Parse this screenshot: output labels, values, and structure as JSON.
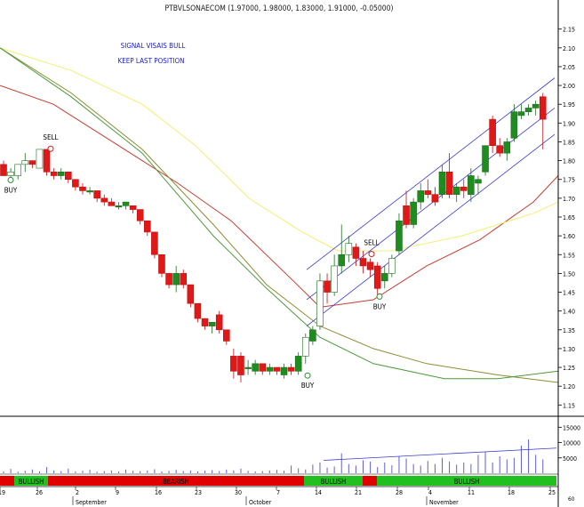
{
  "chart_data": {
    "type": "candlestick",
    "title": "PTBVLSONAECOM (1.97000, 1.98000, 1.83000, 1.91000, -0.05000)",
    "annotations": [
      "SIGNAL VISAIS BULL",
      "KEEP LAST POSITION"
    ],
    "ylim": [
      1.12,
      2.18
    ],
    "y_ticks": [
      "2.15",
      "2.10",
      "2.05",
      "2.00",
      "1.95",
      "1.90",
      "1.85",
      "1.80",
      "1.75",
      "1.70",
      "1.65",
      "1.60",
      "1.55",
      "1.50",
      "1.45",
      "1.40",
      "1.35",
      "1.30",
      "1.25",
      "1.20",
      "1.15"
    ],
    "x_day_labels": [
      "19",
      "26",
      "2",
      "9",
      "16",
      "23",
      "30",
      "7",
      "14",
      "21",
      "28",
      "4",
      "11",
      "18",
      "25"
    ],
    "x_month_labels": [
      "September",
      "October",
      "November"
    ],
    "candles": [
      {
        "o": 1.79,
        "h": 1.8,
        "l": 1.76,
        "c": 1.76
      },
      {
        "o": 1.76,
        "h": 1.78,
        "l": 1.75,
        "c": 1.77
      },
      {
        "o": 1.76,
        "h": 1.79,
        "l": 1.75,
        "c": 1.79
      },
      {
        "o": 1.79,
        "h": 1.82,
        "l": 1.77,
        "c": 1.8
      },
      {
        "o": 1.8,
        "h": 1.8,
        "l": 1.78,
        "c": 1.79
      },
      {
        "o": 1.78,
        "h": 1.83,
        "l": 1.78,
        "c": 1.83
      },
      {
        "o": 1.83,
        "h": 1.83,
        "l": 1.76,
        "c": 1.77
      },
      {
        "o": 1.77,
        "h": 1.78,
        "l": 1.75,
        "c": 1.76
      },
      {
        "o": 1.76,
        "h": 1.78,
        "l": 1.75,
        "c": 1.77
      },
      {
        "o": 1.77,
        "h": 1.77,
        "l": 1.74,
        "c": 1.75
      },
      {
        "o": 1.75,
        "h": 1.75,
        "l": 1.72,
        "c": 1.73
      },
      {
        "o": 1.73,
        "h": 1.74,
        "l": 1.71,
        "c": 1.72
      },
      {
        "o": 1.72,
        "h": 1.73,
        "l": 1.71,
        "c": 1.72
      },
      {
        "o": 1.72,
        "h": 1.72,
        "l": 1.69,
        "c": 1.7
      },
      {
        "o": 1.7,
        "h": 1.71,
        "l": 1.68,
        "c": 1.69
      },
      {
        "o": 1.69,
        "h": 1.7,
        "l": 1.68,
        "c": 1.68
      },
      {
        "o": 1.68,
        "h": 1.69,
        "l": 1.67,
        "c": 1.68
      },
      {
        "o": 1.68,
        "h": 1.69,
        "l": 1.67,
        "c": 1.69
      },
      {
        "o": 1.68,
        "h": 1.68,
        "l": 1.66,
        "c": 1.67
      },
      {
        "o": 1.67,
        "h": 1.67,
        "l": 1.63,
        "c": 1.64
      },
      {
        "o": 1.64,
        "h": 1.64,
        "l": 1.6,
        "c": 1.61
      },
      {
        "o": 1.61,
        "h": 1.61,
        "l": 1.54,
        "c": 1.55
      },
      {
        "o": 1.55,
        "h": 1.55,
        "l": 1.49,
        "c": 1.5
      },
      {
        "o": 1.5,
        "h": 1.5,
        "l": 1.46,
        "c": 1.47
      },
      {
        "o": 1.47,
        "h": 1.52,
        "l": 1.45,
        "c": 1.5
      },
      {
        "o": 1.5,
        "h": 1.51,
        "l": 1.46,
        "c": 1.47
      },
      {
        "o": 1.47,
        "h": 1.47,
        "l": 1.41,
        "c": 1.42
      },
      {
        "o": 1.42,
        "h": 1.42,
        "l": 1.37,
        "c": 1.38
      },
      {
        "o": 1.38,
        "h": 1.38,
        "l": 1.35,
        "c": 1.36
      },
      {
        "o": 1.36,
        "h": 1.37,
        "l": 1.34,
        "c": 1.37
      },
      {
        "o": 1.39,
        "h": 1.4,
        "l": 1.34,
        "c": 1.35
      },
      {
        "o": 1.35,
        "h": 1.35,
        "l": 1.31,
        "c": 1.32
      },
      {
        "o": 1.28,
        "h": 1.3,
        "l": 1.22,
        "c": 1.24
      },
      {
        "o": 1.28,
        "h": 1.29,
        "l": 1.21,
        "c": 1.23
      },
      {
        "o": 1.25,
        "h": 1.27,
        "l": 1.23,
        "c": 1.25
      },
      {
        "o": 1.24,
        "h": 1.27,
        "l": 1.23,
        "c": 1.26
      },
      {
        "o": 1.26,
        "h": 1.26,
        "l": 1.23,
        "c": 1.24
      },
      {
        "o": 1.24,
        "h": 1.26,
        "l": 1.23,
        "c": 1.25
      },
      {
        "o": 1.25,
        "h": 1.25,
        "l": 1.23,
        "c": 1.24
      },
      {
        "o": 1.23,
        "h": 1.26,
        "l": 1.22,
        "c": 1.25
      },
      {
        "o": 1.25,
        "h": 1.26,
        "l": 1.23,
        "c": 1.24
      },
      {
        "o": 1.24,
        "h": 1.29,
        "l": 1.23,
        "c": 1.28
      },
      {
        "o": 1.28,
        "h": 1.34,
        "l": 1.26,
        "c": 1.33
      },
      {
        "o": 1.32,
        "h": 1.36,
        "l": 1.31,
        "c": 1.35
      },
      {
        "o": 1.36,
        "h": 1.5,
        "l": 1.35,
        "c": 1.48
      },
      {
        "o": 1.48,
        "h": 1.5,
        "l": 1.42,
        "c": 1.45
      },
      {
        "o": 1.45,
        "h": 1.55,
        "l": 1.44,
        "c": 1.52
      },
      {
        "o": 1.52,
        "h": 1.63,
        "l": 1.5,
        "c": 1.55
      },
      {
        "o": 1.55,
        "h": 1.6,
        "l": 1.53,
        "c": 1.58
      },
      {
        "o": 1.57,
        "h": 1.58,
        "l": 1.52,
        "c": 1.54
      },
      {
        "o": 1.54,
        "h": 1.56,
        "l": 1.5,
        "c": 1.52
      },
      {
        "o": 1.53,
        "h": 1.54,
        "l": 1.49,
        "c": 1.51
      },
      {
        "o": 1.52,
        "h": 1.53,
        "l": 1.44,
        "c": 1.46
      },
      {
        "o": 1.48,
        "h": 1.52,
        "l": 1.46,
        "c": 1.5
      },
      {
        "o": 1.5,
        "h": 1.55,
        "l": 1.49,
        "c": 1.54
      },
      {
        "o": 1.56,
        "h": 1.66,
        "l": 1.55,
        "c": 1.64
      },
      {
        "o": 1.68,
        "h": 1.72,
        "l": 1.62,
        "c": 1.63
      },
      {
        "o": 1.63,
        "h": 1.7,
        "l": 1.62,
        "c": 1.69
      },
      {
        "o": 1.69,
        "h": 1.74,
        "l": 1.67,
        "c": 1.72
      },
      {
        "o": 1.72,
        "h": 1.75,
        "l": 1.7,
        "c": 1.71
      },
      {
        "o": 1.71,
        "h": 1.73,
        "l": 1.68,
        "c": 1.69
      },
      {
        "o": 1.71,
        "h": 1.79,
        "l": 1.7,
        "c": 1.77
      },
      {
        "o": 1.77,
        "h": 1.82,
        "l": 1.7,
        "c": 1.71
      },
      {
        "o": 1.71,
        "h": 1.74,
        "l": 1.69,
        "c": 1.73
      },
      {
        "o": 1.73,
        "h": 1.75,
        "l": 1.7,
        "c": 1.72
      },
      {
        "o": 1.71,
        "h": 1.78,
        "l": 1.69,
        "c": 1.76
      },
      {
        "o": 1.74,
        "h": 1.76,
        "l": 1.71,
        "c": 1.75
      },
      {
        "o": 1.77,
        "h": 1.84,
        "l": 1.76,
        "c": 1.84
      },
      {
        "o": 1.91,
        "h": 1.92,
        "l": 1.82,
        "c": 1.84
      },
      {
        "o": 1.84,
        "h": 1.86,
        "l": 1.81,
        "c": 1.82
      },
      {
        "o": 1.82,
        "h": 1.86,
        "l": 1.8,
        "c": 1.85
      },
      {
        "o": 1.86,
        "h": 1.95,
        "l": 1.85,
        "c": 1.93
      },
      {
        "o": 1.92,
        "h": 1.95,
        "l": 1.91,
        "c": 1.93
      },
      {
        "o": 1.93,
        "h": 1.95,
        "l": 1.92,
        "c": 1.94
      },
      {
        "o": 1.94,
        "h": 1.96,
        "l": 1.92,
        "c": 1.95
      },
      {
        "o": 1.97,
        "h": 1.98,
        "l": 1.83,
        "c": 1.91
      }
    ],
    "overlay_lines": [
      {
        "color": "#f0f070",
        "y_start": 2.1,
        "y_end": 1.69
      },
      {
        "color": "#c83c32",
        "y_start": 2.0,
        "y_end": 1.76
      },
      {
        "color": "#8c8c32",
        "y_start": 2.1,
        "y_end": 1.21
      },
      {
        "color": "#4a9a3a",
        "y_start": 2.1,
        "y_end": 1.24
      }
    ],
    "channel": {
      "color": "#3a3ad0",
      "y_start_upper": 1.51,
      "y_start_mid": 1.43,
      "y_start_lower": 1.36,
      "y_end_upper": 2.02,
      "y_end_mid": 1.94,
      "y_end_lower": 1.87
    },
    "signals": [
      {
        "label": "BUY",
        "type": "buy"
      },
      {
        "label": "SELL",
        "type": "sell"
      },
      {
        "label": "BUY",
        "type": "buy"
      },
      {
        "label": "SELL",
        "type": "sell"
      },
      {
        "label": "BUY",
        "type": "buy"
      }
    ],
    "volume": {
      "ylim": [
        0,
        18000
      ],
      "y_ticks": [
        "15000",
        "10000",
        "5000"
      ],
      "avg_line": {
        "start": 4200,
        "end": 8200
      }
    },
    "trend_bar": [
      {
        "label": "",
        "color": "#e00000"
      },
      {
        "label": "BULLISH",
        "color": "#20c020"
      },
      {
        "label": "BEARISH",
        "color": "#e00000"
      },
      {
        "label": "BULLISH",
        "color": "#20c020"
      },
      {
        "label": "",
        "color": "#e00000"
      },
      {
        "label": "BULLISH",
        "color": "#20c020"
      }
    ],
    "corner_label": "60",
    "colors": {
      "up": "#1e8c1e",
      "down": "#e01818",
      "axis": "#000000",
      "text": "#1a1acc"
    }
  }
}
